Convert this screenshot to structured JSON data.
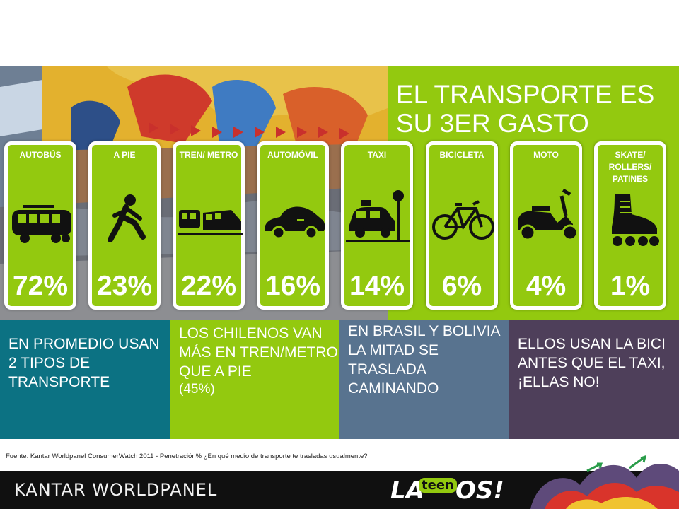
{
  "title": "EL TRANSPORTE ES SU 3ER GASTO",
  "cards": [
    {
      "label": "AUTOBÚS",
      "value": "72%",
      "icon": "bus-icon"
    },
    {
      "label": "A PIE",
      "value": "23%",
      "icon": "walking-person-icon"
    },
    {
      "label": "TREN/ METRO",
      "value": "22%",
      "icon": "train-icon"
    },
    {
      "label": "AUTOMÓVIL",
      "value": "16%",
      "icon": "car-icon"
    },
    {
      "label": "TAXI",
      "value": "14%",
      "icon": "taxi-icon"
    },
    {
      "label": "BICICLETA",
      "value": "6%",
      "icon": "bicycle-icon"
    },
    {
      "label": "MOTO",
      "value": "4%",
      "icon": "scooter-icon"
    },
    {
      "label": "SKATE/ ROLLERS/ PATINES",
      "value": "1%",
      "icon": "roller-skate-icon"
    }
  ],
  "facts": [
    {
      "text": "EN PROMEDIO USAN 2 TIPOS DE TRANSPORTE"
    },
    {
      "text": "LOS CHILENOS VAN MÁS EN TREN/METRO QUE A PIE",
      "note": "(45%)"
    },
    {
      "text": "EN BRASIL Y BOLIVIA LA MITAD SE TRASLADA CAMINANDO"
    },
    {
      "text": "ELLOS USAN LA BICI ANTES QUE EL TAXI, ¡ELLAS NO!"
    }
  ],
  "source": "Fuente: Kantar Worldpanel ConsumerWatch 2011 - Penetración% ¿En qué medio de transporte te trasladas usualmente?",
  "footer": {
    "brand": "KANTAR WORLDPANEL",
    "logo_left": "LA",
    "logo_mid": "teen",
    "logo_right": "OS!"
  },
  "colors": {
    "green": "#93c90f",
    "teal": "#0c7283",
    "slate_blue": "#58738f",
    "purple": "#4e3f5a",
    "footer_black": "#101010"
  }
}
